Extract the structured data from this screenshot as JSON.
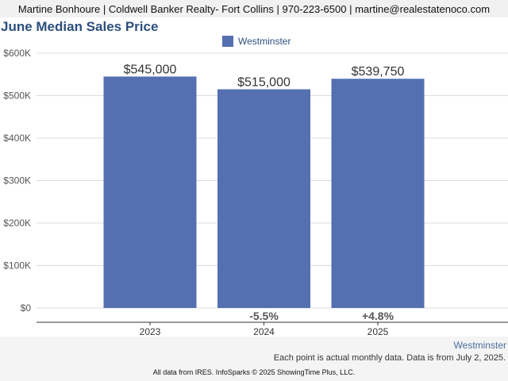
{
  "header": {
    "contact": "Martine Bonhoure | Coldwell Banker Realty- Fort Collins | 970-223-6500 | martine@realestatenoco.com"
  },
  "footer": {
    "series_label": "Westminster",
    "note": "Each point is actual monthly data. Data is from July 2, 2025.",
    "credit": "All data from IRES. InfoSparks © 2025 ShowingTime Plus, LLC."
  },
  "chart_data": {
    "type": "bar",
    "title": "June Median Sales Price",
    "categories": [
      "2023",
      "2024",
      "2025"
    ],
    "series": [
      {
        "name": "Westminster",
        "values": [
          545000,
          515000,
          539750
        ],
        "color": "#5470b1"
      }
    ],
    "data_labels": [
      "$545,000",
      "$515,000",
      "$539,750"
    ],
    "change_labels": [
      "",
      "-5.5%",
      "+4.8%"
    ],
    "ylim": [
      0,
      600000
    ],
    "yticks": [
      0,
      100000,
      200000,
      300000,
      400000,
      500000,
      600000
    ],
    "ytick_labels": [
      "$0",
      "$100K",
      "$200K",
      "$300K",
      "$400K",
      "$500K",
      "$600K"
    ],
    "grid": true,
    "legend_position": "top-center",
    "xlabel": "",
    "ylabel": ""
  }
}
